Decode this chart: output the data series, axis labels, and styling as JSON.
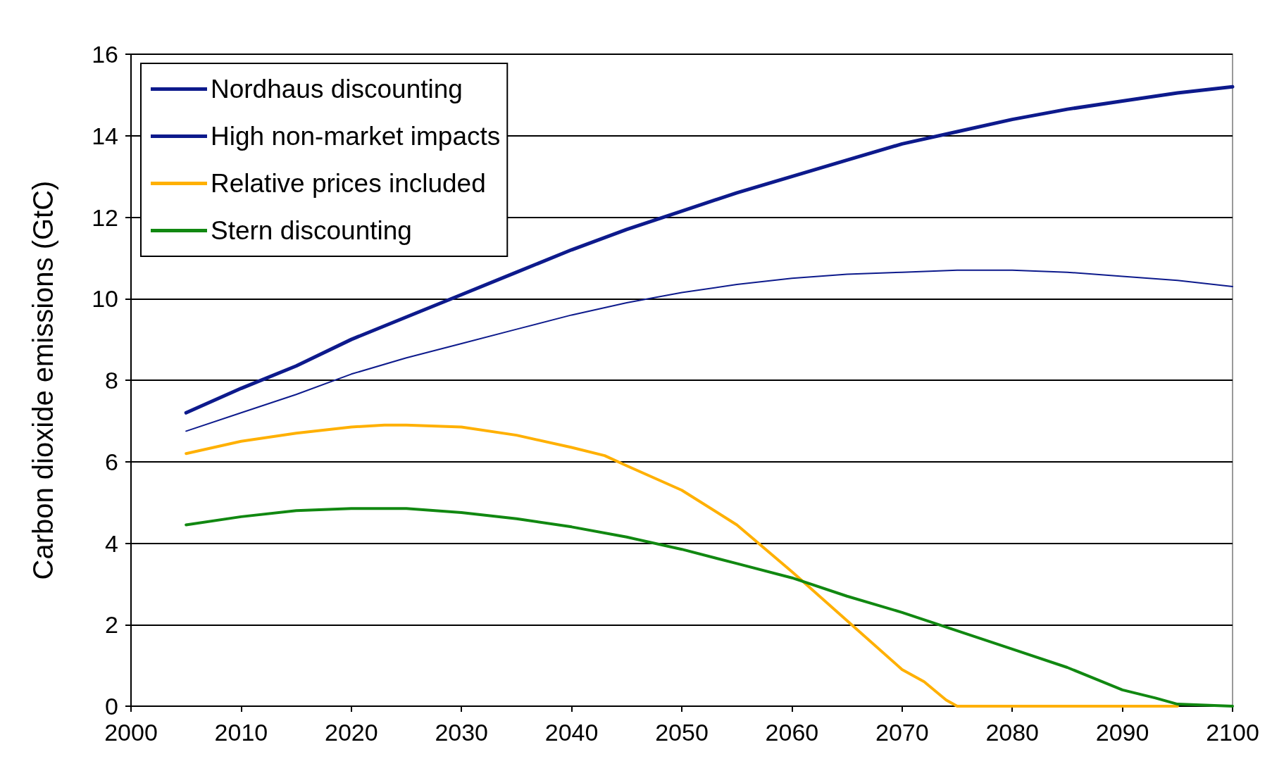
{
  "chart_data": {
    "type": "line",
    "ylabel": "Carbon dioxide emissions (GtC)",
    "xlim": [
      2000,
      2100
    ],
    "xticks": [
      2000,
      2010,
      2020,
      2030,
      2040,
      2050,
      2060,
      2070,
      2080,
      2090,
      2100
    ],
    "ylim": [
      0,
      16
    ],
    "yticks": [
      0,
      2,
      4,
      6,
      8,
      10,
      12,
      14,
      16
    ],
    "grid": "y",
    "legend": "top left",
    "marker": "none",
    "line_style": "solid",
    "series": [
      {
        "name": "Nordhaus discounting",
        "color": "#0d1a8c",
        "x": [
          2005,
          2010,
          2015,
          2020,
          2025,
          2030,
          2035,
          2040,
          2045,
          2050,
          2055,
          2060,
          2065,
          2070,
          2075,
          2080,
          2085,
          2090,
          2095,
          2100
        ],
        "values": [
          7.2,
          7.8,
          8.35,
          9.0,
          9.55,
          10.1,
          10.65,
          11.2,
          11.7,
          12.15,
          12.6,
          13.0,
          13.4,
          13.8,
          14.1,
          14.4,
          14.65,
          14.85,
          15.05,
          15.2
        ]
      },
      {
        "name": "High non-market impacts",
        "color": "#0d1a8c",
        "x": [
          2005,
          2010,
          2015,
          2020,
          2025,
          2030,
          2035,
          2040,
          2045,
          2050,
          2055,
          2060,
          2065,
          2070,
          2075,
          2080,
          2085,
          2090,
          2095,
          2100
        ],
        "values": [
          6.75,
          7.2,
          7.65,
          8.15,
          8.55,
          8.9,
          9.25,
          9.6,
          9.9,
          10.15,
          10.35,
          10.5,
          10.6,
          10.65,
          10.7,
          10.7,
          10.65,
          10.55,
          10.45,
          10.3
        ]
      },
      {
        "name": "Relative prices included",
        "color": "#ffb000",
        "x": [
          2005,
          2010,
          2015,
          2020,
          2023,
          2025,
          2030,
          2035,
          2040,
          2043,
          2045,
          2050,
          2055,
          2060,
          2065,
          2070,
          2072,
          2074,
          2075,
          2080,
          2085,
          2090,
          2095
        ],
        "values": [
          6.2,
          6.5,
          6.7,
          6.85,
          6.9,
          6.9,
          6.85,
          6.65,
          6.35,
          6.15,
          5.9,
          5.3,
          4.45,
          3.3,
          2.1,
          0.9,
          0.6,
          0.15,
          0,
          0,
          0,
          0,
          0
        ]
      },
      {
        "name": "Stern discounting",
        "color": "#118811",
        "x": [
          2005,
          2010,
          2015,
          2020,
          2025,
          2030,
          2035,
          2040,
          2045,
          2050,
          2055,
          2060,
          2065,
          2070,
          2075,
          2080,
          2085,
          2090,
          2093,
          2095,
          2100
        ],
        "values": [
          4.45,
          4.65,
          4.8,
          4.85,
          4.85,
          4.75,
          4.6,
          4.4,
          4.15,
          3.85,
          3.5,
          3.15,
          2.7,
          2.3,
          1.85,
          1.4,
          0.95,
          0.4,
          0.2,
          0.05,
          0
        ]
      }
    ]
  }
}
